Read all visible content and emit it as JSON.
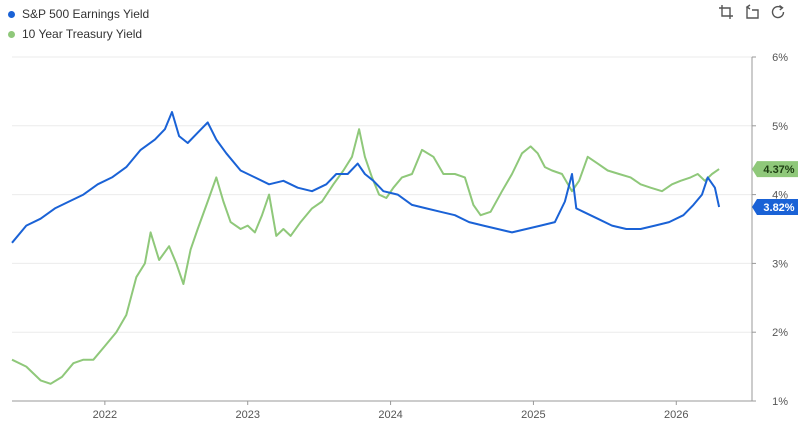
{
  "toolbar": {
    "icons": [
      "crop-icon",
      "reset-zoom-icon",
      "refresh-icon"
    ]
  },
  "chart_data": {
    "type": "line",
    "xlim": [
      2021.35,
      2026.53
    ],
    "ylim": [
      1,
      6
    ],
    "x_tick_labels": [
      {
        "x": 2022,
        "label": "2022"
      },
      {
        "x": 2023,
        "label": "2023"
      },
      {
        "x": 2024,
        "label": "2024"
      },
      {
        "x": 2025,
        "label": "2025"
      },
      {
        "x": 2026,
        "label": "2026"
      }
    ],
    "y_tick_labels": [
      {
        "y": 1,
        "label": "1%"
      },
      {
        "y": 2,
        "label": "2%"
      },
      {
        "y": 3,
        "label": "3%"
      },
      {
        "y": 4,
        "label": "4%"
      },
      {
        "y": 5,
        "label": "5%"
      },
      {
        "y": 6,
        "label": "6%"
      }
    ],
    "grid": true,
    "legend_position": "top-left",
    "series": [
      {
        "name": "S&P 500 Earnings Yield",
        "color": "#1a62d6",
        "end_label": "3.82%",
        "x": [
          2021.35,
          2021.45,
          2021.55,
          2021.65,
          2021.75,
          2021.85,
          2021.95,
          2022.05,
          2022.15,
          2022.25,
          2022.35,
          2022.42,
          2022.47,
          2022.52,
          2022.58,
          2022.65,
          2022.72,
          2022.78,
          2022.85,
          2022.95,
          2023.05,
          2023.15,
          2023.25,
          2023.35,
          2023.45,
          2023.55,
          2023.62,
          2023.7,
          2023.77,
          2023.82,
          2023.88,
          2023.95,
          2024.05,
          2024.15,
          2024.25,
          2024.35,
          2024.45,
          2024.55,
          2024.65,
          2024.75,
          2024.85,
          2024.95,
          2025.05,
          2025.15,
          2025.22,
          2025.27,
          2025.3,
          2025.35,
          2025.45,
          2025.55,
          2025.65,
          2025.75,
          2025.85,
          2025.95,
          2026.05,
          2026.12,
          2026.18,
          2026.22,
          2026.27,
          2026.3
        ],
        "y": [
          3.3,
          3.55,
          3.65,
          3.8,
          3.9,
          4.0,
          4.15,
          4.25,
          4.4,
          4.65,
          4.8,
          4.95,
          5.2,
          4.85,
          4.75,
          4.9,
          5.05,
          4.8,
          4.6,
          4.35,
          4.25,
          4.15,
          4.2,
          4.1,
          4.05,
          4.15,
          4.3,
          4.3,
          4.45,
          4.3,
          4.2,
          4.05,
          4.0,
          3.85,
          3.8,
          3.75,
          3.7,
          3.6,
          3.55,
          3.5,
          3.45,
          3.5,
          3.55,
          3.6,
          3.9,
          4.3,
          3.8,
          3.75,
          3.65,
          3.55,
          3.5,
          3.5,
          3.55,
          3.6,
          3.7,
          3.85,
          4.0,
          4.25,
          4.1,
          3.82
        ]
      },
      {
        "name": "10 Year Treasury Yield",
        "color": "#8fc87a",
        "end_label": "4.37%",
        "x": [
          2021.35,
          2021.45,
          2021.55,
          2021.62,
          2021.7,
          2021.78,
          2021.85,
          2021.92,
          2022.0,
          2022.08,
          2022.15,
          2022.22,
          2022.28,
          2022.32,
          2022.38,
          2022.45,
          2022.5,
          2022.55,
          2022.6,
          2022.65,
          2022.72,
          2022.78,
          2022.83,
          2022.88,
          2022.95,
          2023.0,
          2023.05,
          2023.1,
          2023.15,
          2023.2,
          2023.25,
          2023.3,
          2023.37,
          2023.45,
          2023.52,
          2023.6,
          2023.67,
          2023.73,
          2023.78,
          2023.82,
          2023.87,
          2023.92,
          2023.97,
          2024.02,
          2024.08,
          2024.15,
          2024.22,
          2024.3,
          2024.37,
          2024.45,
          2024.52,
          2024.58,
          2024.63,
          2024.7,
          2024.78,
          2024.85,
          2024.92,
          2024.98,
          2025.03,
          2025.08,
          2025.13,
          2025.2,
          2025.27,
          2025.32,
          2025.38,
          2025.45,
          2025.52,
          2025.6,
          2025.68,
          2025.75,
          2025.82,
          2025.9,
          2025.97,
          2026.03,
          2026.1,
          2026.15,
          2026.2,
          2026.25,
          2026.3
        ],
        "y": [
          1.6,
          1.5,
          1.3,
          1.25,
          1.35,
          1.55,
          1.6,
          1.6,
          1.8,
          2.0,
          2.25,
          2.8,
          3.0,
          3.45,
          3.05,
          3.25,
          3.0,
          2.7,
          3.2,
          3.5,
          3.9,
          4.25,
          3.9,
          3.6,
          3.5,
          3.55,
          3.45,
          3.7,
          4.0,
          3.4,
          3.5,
          3.4,
          3.6,
          3.8,
          3.9,
          4.15,
          4.35,
          4.55,
          4.95,
          4.55,
          4.25,
          4.0,
          3.95,
          4.1,
          4.25,
          4.3,
          4.65,
          4.55,
          4.3,
          4.3,
          4.25,
          3.85,
          3.7,
          3.75,
          4.05,
          4.3,
          4.6,
          4.7,
          4.6,
          4.4,
          4.35,
          4.3,
          4.05,
          4.2,
          4.55,
          4.45,
          4.35,
          4.3,
          4.25,
          4.15,
          4.1,
          4.05,
          4.15,
          4.2,
          4.25,
          4.3,
          4.2,
          4.3,
          4.37
        ]
      }
    ]
  }
}
